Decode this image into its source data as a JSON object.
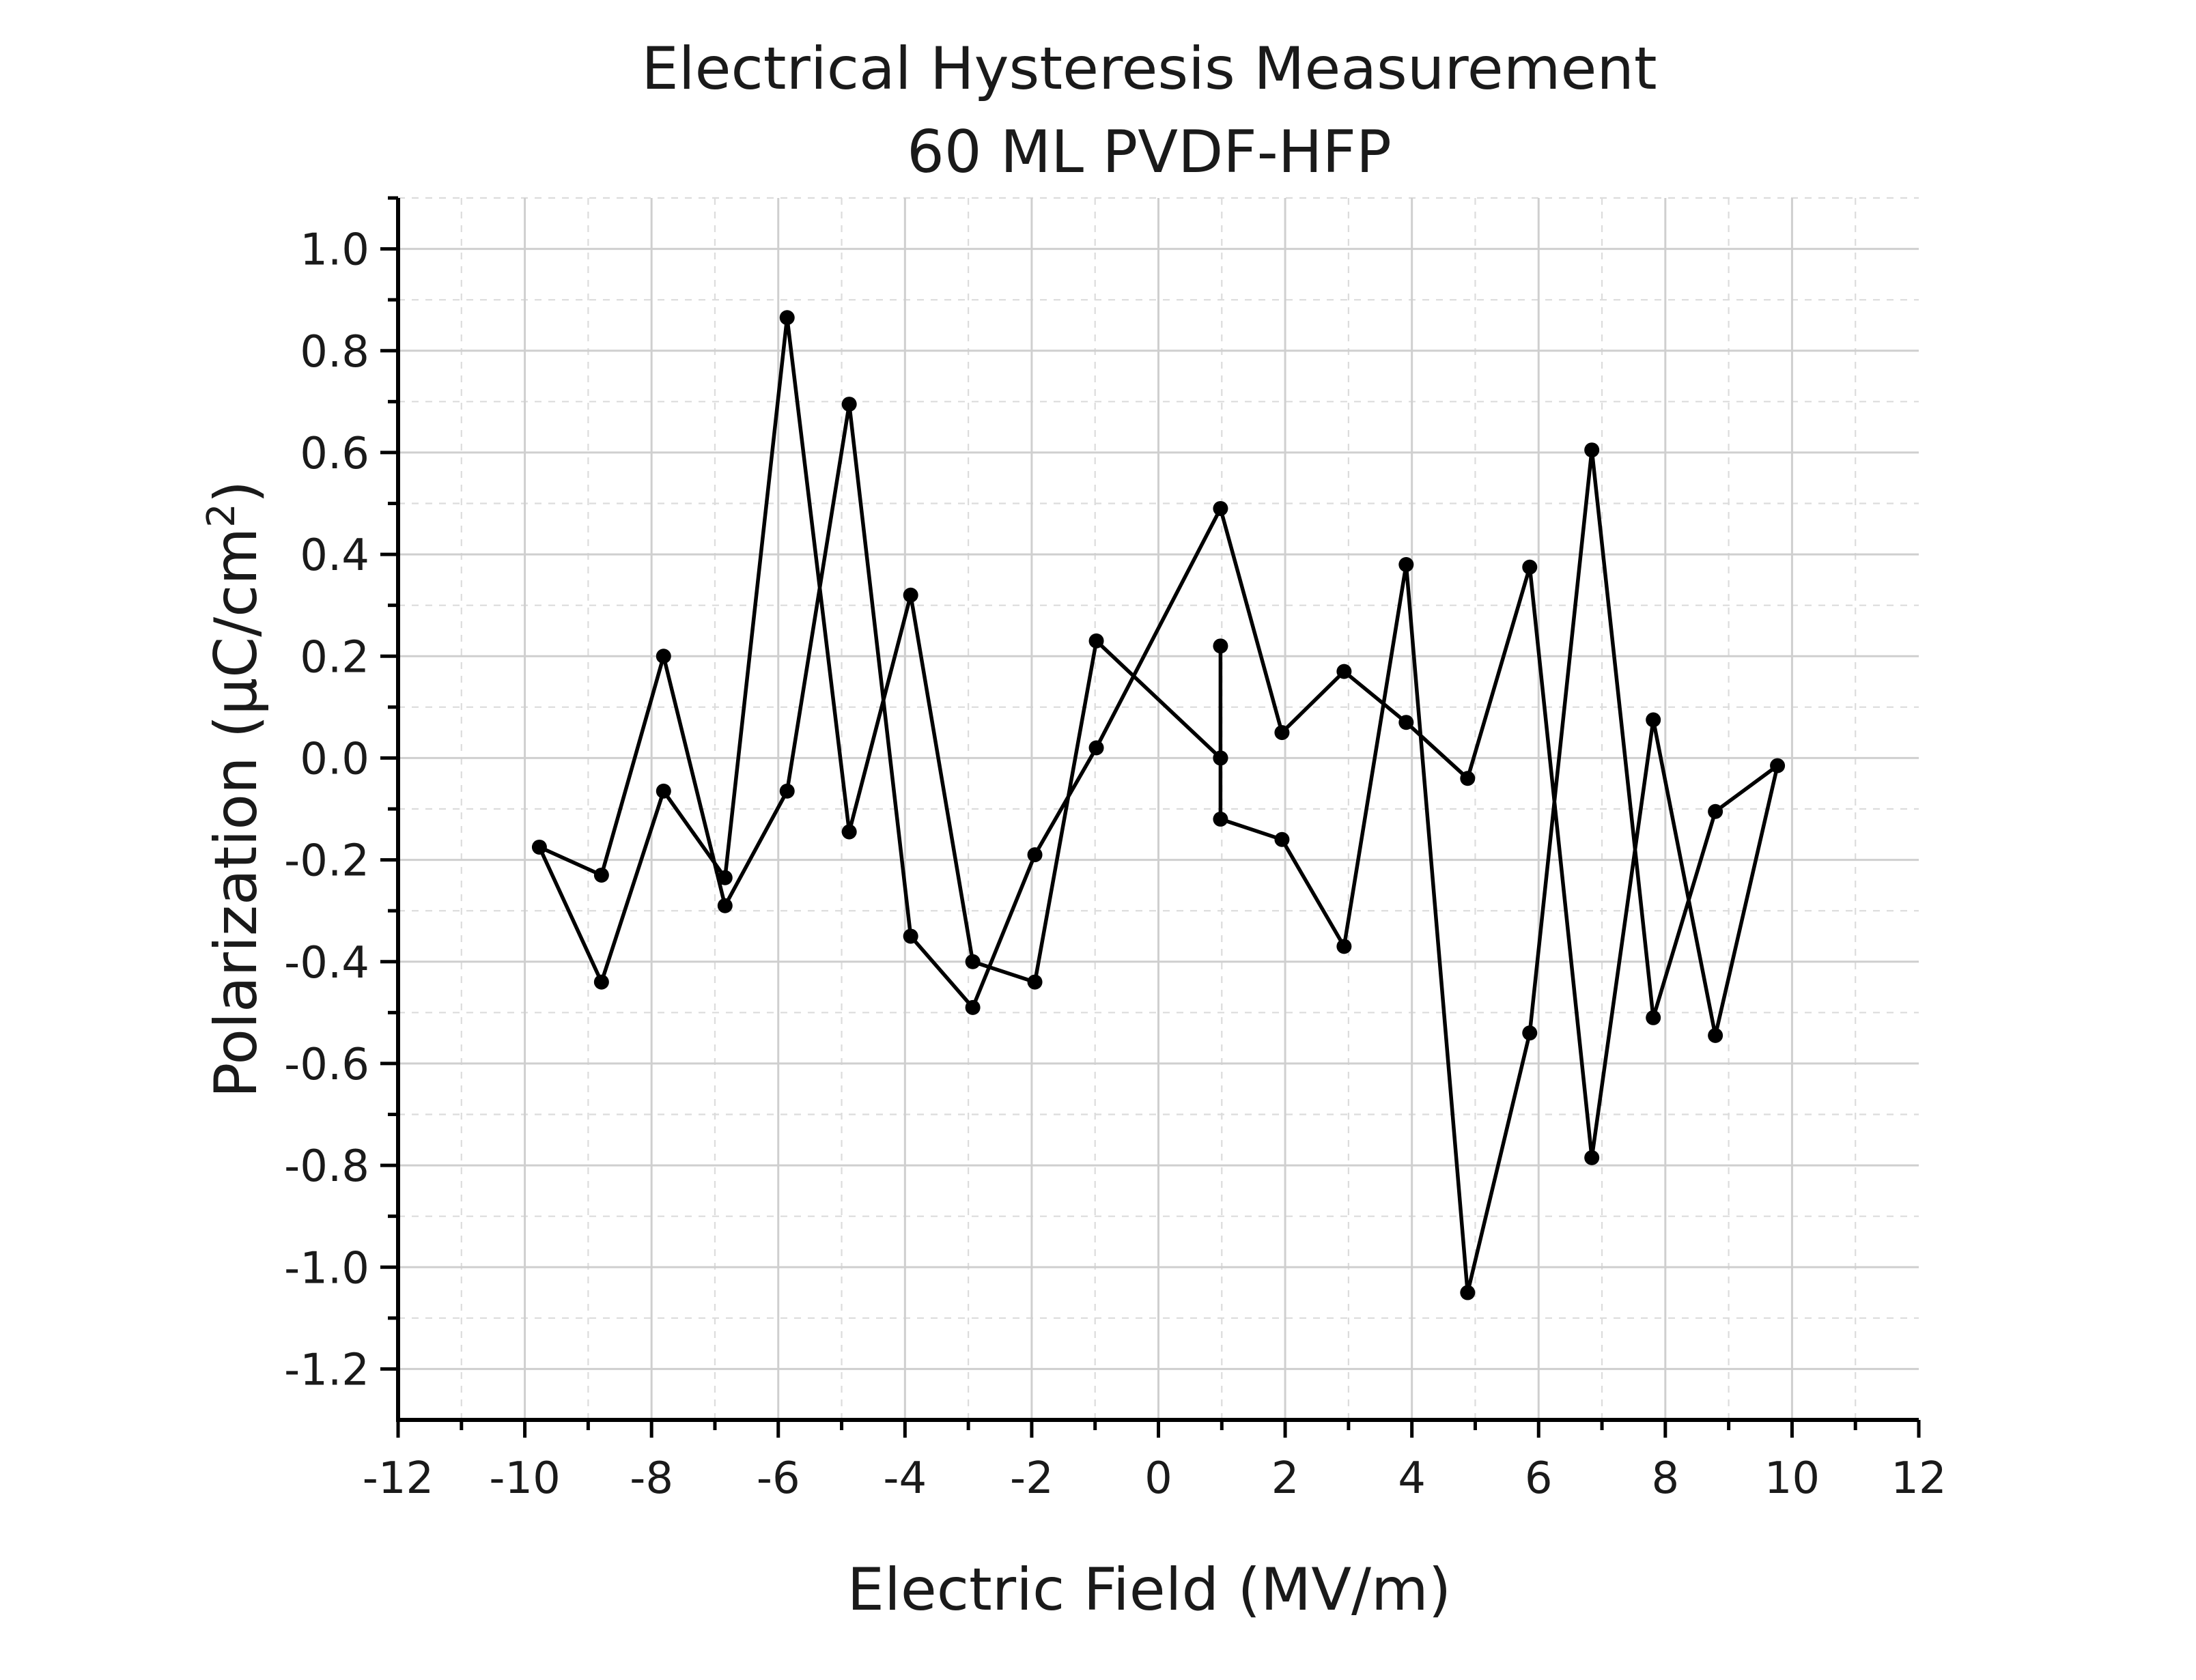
{
  "chart_data": {
    "type": "line",
    "title": "Electrical Hysteresis Measurement",
    "subtitle": "60 ML PVDF-HFP",
    "xlabel": "Electric Field (MV/m)",
    "ylabel_main": "Polarization (μC/cm",
    "ylabel_sup": "2",
    "ylabel_close": ")",
    "xlim": [
      -12,
      12
    ],
    "ylim": [
      -1.3,
      1.1
    ],
    "x_ticks": [
      -12,
      -10,
      -8,
      -6,
      -4,
      -2,
      0,
      2,
      4,
      6,
      8,
      10,
      12
    ],
    "x_tick_labels": [
      "-12",
      "-10",
      "-8",
      "-6",
      "-4",
      "-2",
      "0",
      "2",
      "4",
      "6",
      "8",
      "10",
      "12"
    ],
    "y_ticks": [
      1.0,
      0.8,
      0.6,
      0.4,
      0.2,
      0.0,
      -0.2,
      -0.4,
      -0.6,
      -0.8,
      -1.0,
      -1.2
    ],
    "y_tick_labels": [
      "1.0",
      "0.8",
      "0.6",
      "0.4",
      "0.2",
      "0.0",
      "-0.2",
      "-0.4",
      "-0.6",
      "-0.8",
      "-1.0",
      "-1.2"
    ],
    "grid": true,
    "line_color": "#000000",
    "series": [
      {
        "x": [
          0.98,
          0.98,
          1.95,
          2.93,
          3.91,
          4.88,
          5.86,
          6.84,
          7.81,
          8.79,
          9.77,
          8.79,
          7.81,
          6.84,
          5.86,
          4.88,
          3.91,
          2.93,
          1.95,
          0.98,
          -0.98,
          -1.95,
          -2.93,
          -3.91,
          -4.88,
          -5.86,
          -6.84,
          -7.81,
          -8.79,
          -9.77,
          -8.79,
          -7.81,
          -6.84,
          -5.86,
          -4.88,
          -3.91,
          -2.93,
          -1.95,
          -0.98,
          0.98,
          0.98
        ],
        "y": [
          0.0,
          -0.12,
          -0.16,
          -0.37,
          0.38,
          -1.05,
          -0.54,
          0.605,
          -0.51,
          -0.105,
          -0.015,
          -0.545,
          0.075,
          -0.785,
          0.375,
          -0.04,
          0.07,
          0.17,
          0.05,
          0.49,
          0.02,
          -0.19,
          -0.49,
          -0.35,
          0.695,
          -0.065,
          -0.29,
          0.2,
          -0.23,
          -0.175,
          -0.44,
          -0.065,
          -0.235,
          0.865,
          -0.145,
          0.32,
          -0.4,
          -0.44,
          0.23,
          0.0,
          0.22
        ]
      }
    ]
  }
}
